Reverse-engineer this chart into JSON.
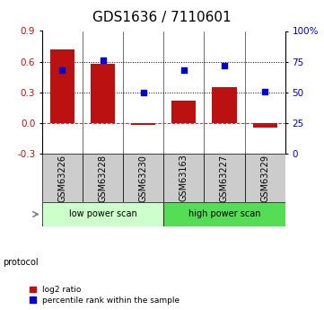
{
  "title": "GDS1636 / 7110601",
  "categories": [
    "GSM63226",
    "GSM63228",
    "GSM63230",
    "GSM63163",
    "GSM63227",
    "GSM63229"
  ],
  "log2_ratio": [
    0.72,
    0.58,
    -0.02,
    0.22,
    0.35,
    -0.04
  ],
  "percentile_rank": [
    68,
    76,
    50,
    68,
    72,
    51
  ],
  "bar_color": "#bb1111",
  "dot_color": "#0000cc",
  "ylim_left": [
    -0.3,
    0.9
  ],
  "ylim_right": [
    0,
    100
  ],
  "yticks_left": [
    -0.3,
    0.0,
    0.3,
    0.6,
    0.9
  ],
  "yticks_right": [
    0,
    25,
    50,
    75,
    100
  ],
  "ytick_labels_right": [
    "0",
    "25",
    "50",
    "75",
    "100%"
  ],
  "hlines": [
    0.3,
    0.6
  ],
  "zero_line_color": "#cc3333",
  "hline_color": "#000000",
  "protocol_groups": [
    {
      "label": "low power scan",
      "indices": [
        0,
        1,
        2
      ],
      "color": "#ccffcc"
    },
    {
      "label": "high power scan",
      "indices": [
        3,
        4,
        5
      ],
      "color": "#55dd55"
    }
  ],
  "protocol_label": "protocol",
  "legend_entries": [
    {
      "label": "log2 ratio",
      "color": "#bb1111"
    },
    {
      "label": "percentile rank within the sample",
      "color": "#0000cc"
    }
  ],
  "title_fontsize": 11,
  "tick_fontsize": 7.5,
  "label_fontsize": 7,
  "bar_width": 0.6,
  "bg_color": "#ffffff"
}
